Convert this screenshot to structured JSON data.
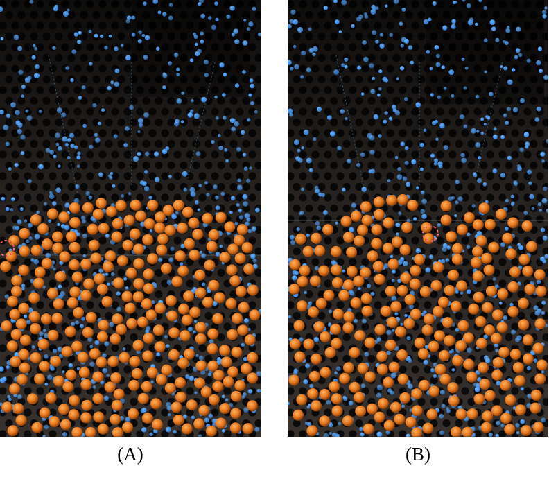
{
  "panels": [
    {
      "id": "a",
      "caption": "(A)",
      "marker": "dashed-red-circle"
    },
    {
      "id": "b",
      "caption": "(B)",
      "marker": "dashed-red-circle"
    }
  ],
  "colors": {
    "background": "#ffffff",
    "plate": "#3a3430",
    "hole": "#0d0c0c",
    "large_particle": "#e3761e",
    "small_particle": "#2f7fe0",
    "marker": "#e84040"
  }
}
